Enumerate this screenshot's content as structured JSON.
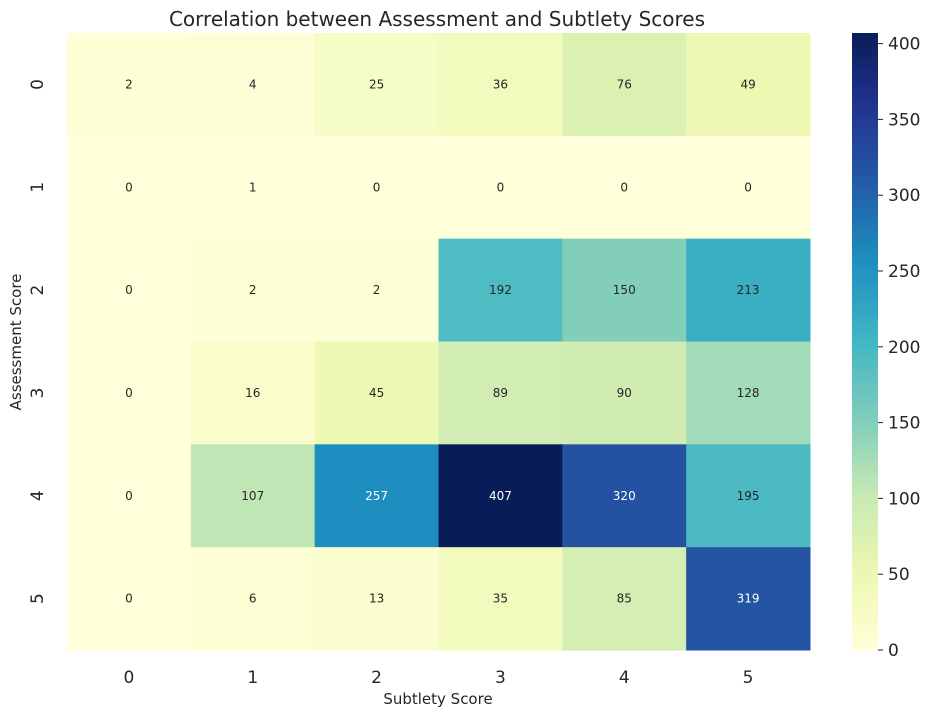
{
  "chart_data": {
    "type": "heatmap",
    "title": "Correlation between Assessment and Subtlety Scores",
    "xlabel": "Subtlety Score",
    "ylabel": "Assessment Score",
    "x_categories": [
      "0",
      "1",
      "2",
      "3",
      "4",
      "5"
    ],
    "y_categories": [
      "0",
      "1",
      "2",
      "3",
      "4",
      "5"
    ],
    "values": [
      [
        2,
        4,
        25,
        36,
        76,
        49
      ],
      [
        0,
        1,
        0,
        0,
        0,
        0
      ],
      [
        0,
        2,
        2,
        192,
        150,
        213
      ],
      [
        0,
        16,
        45,
        89,
        90,
        128
      ],
      [
        0,
        107,
        257,
        407,
        320,
        195
      ],
      [
        0,
        6,
        13,
        35,
        85,
        319
      ]
    ],
    "colormap": "YlGnBu",
    "vmin": 0,
    "vmax": 407,
    "colorbar_ticks": [
      0,
      50,
      100,
      150,
      200,
      250,
      300,
      350,
      400
    ],
    "annotated": true,
    "grid": false
  }
}
